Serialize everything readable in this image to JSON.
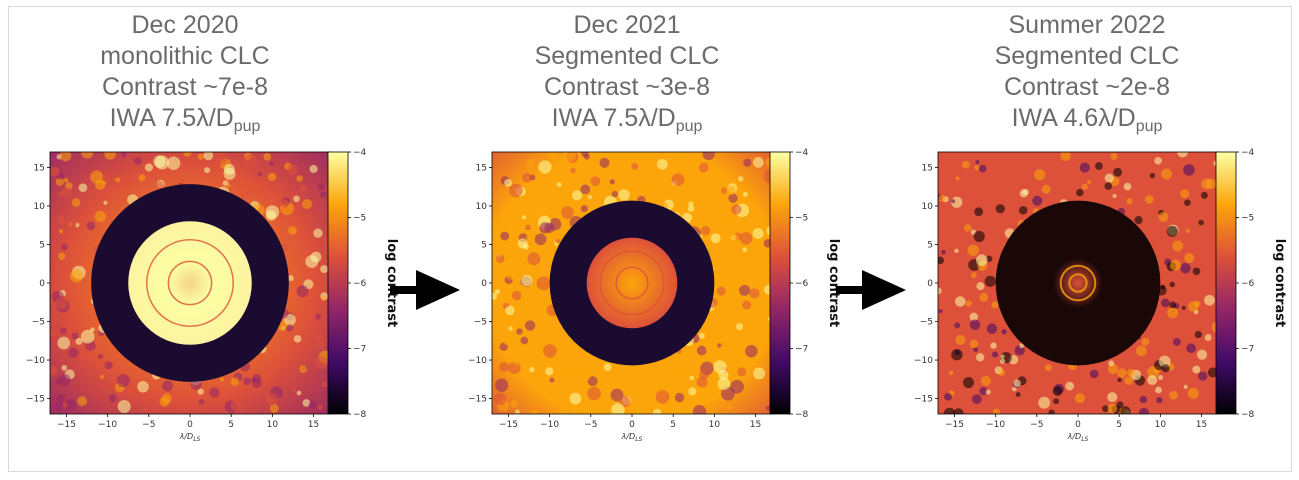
{
  "panels": [
    {
      "title_lines": [
        "Dec 2020",
        "monolithic CLC",
        "Contrast ~7e-8"
      ],
      "iwa_prefix": "IWA 7.5λ/D",
      "iwa_sub": "pup",
      "xlabel": "λ/D",
      "xlabel_sub": "LS",
      "colorbar_label": "log contrast",
      "ticks": [
        "−15",
        "−10",
        "−5",
        "0",
        "5",
        "10",
        "15"
      ],
      "cbar_ticks": [
        "−4",
        "−5",
        "−6",
        "−7",
        "−8"
      ]
    },
    {
      "title_lines": [
        "Dec 2021",
        "Segmented CLC",
        "Contrast ~3e-8"
      ],
      "iwa_prefix": "IWA 7.5λ/D",
      "iwa_sub": "pup",
      "xlabel": "λ/D",
      "xlabel_sub": "LS",
      "colorbar_label": "log contrast",
      "ticks": [
        "−15",
        "−10",
        "−5",
        "0",
        "5",
        "10",
        "15"
      ],
      "cbar_ticks": [
        "−4",
        "−5",
        "−6",
        "−7",
        "−8"
      ]
    },
    {
      "title_lines": [
        "Summer 2022",
        "Segmented CLC",
        "Contrast ~2e-8"
      ],
      "iwa_prefix": "IWA 4.6λ/D",
      "iwa_sub": "pup",
      "xlabel": "λ/D",
      "xlabel_sub": "LS",
      "colorbar_label": "log contrast",
      "ticks": [
        "−15",
        "−10",
        "−5",
        "0",
        "5",
        "10",
        "15"
      ],
      "cbar_ticks": [
        "−4",
        "−5",
        "−6",
        "−7",
        "−8"
      ]
    }
  ],
  "chart_data": [
    {
      "type": "heatmap",
      "title": "Dec 2020 monolithic CLC Contrast ~7e-8 IWA 7.5λ/Dpup",
      "xlabel": "λ/D_LS",
      "xlim": [
        -17,
        17
      ],
      "ylim": [
        -17,
        17
      ],
      "xticks": [
        -15,
        -10,
        -5,
        0,
        5,
        10,
        15
      ],
      "yticks": [
        -15,
        -10,
        -5,
        0,
        5,
        10,
        15
      ],
      "colorbar": {
        "label": "log contrast",
        "range": [
          -8,
          -4
        ],
        "ticks": [
          -4,
          -5,
          -6,
          -7,
          -8
        ]
      },
      "dark_hole_radii": [
        7.5,
        12
      ]
    },
    {
      "type": "heatmap",
      "title": "Dec 2021 Segmented CLC Contrast ~3e-8 IWA 7.5λ/Dpup",
      "xlabel": "λ/D_LS",
      "xlim": [
        -17,
        17
      ],
      "ylim": [
        -17,
        17
      ],
      "xticks": [
        -15,
        -10,
        -5,
        0,
        5,
        10,
        15
      ],
      "yticks": [
        -15,
        -10,
        -5,
        0,
        5,
        10,
        15
      ],
      "colorbar": {
        "label": "log contrast",
        "range": [
          -8,
          -4
        ],
        "ticks": [
          -4,
          -5,
          -6,
          -7,
          -8
        ]
      },
      "dark_hole_radii": [
        5.5,
        10
      ]
    },
    {
      "type": "heatmap",
      "title": "Summer 2022 Segmented CLC Contrast ~2e-8 IWA 4.6λ/Dpup",
      "xlabel": "λ/D_LS",
      "xlim": [
        -17,
        17
      ],
      "ylim": [
        -17,
        17
      ],
      "xticks": [
        -15,
        -10,
        -5,
        0,
        5,
        10,
        15
      ],
      "yticks": [
        -15,
        -10,
        -5,
        0,
        5,
        10,
        15
      ],
      "colorbar": {
        "label": "log contrast",
        "range": [
          -8,
          -4
        ],
        "ticks": [
          -4,
          -5,
          -6,
          -7,
          -8
        ]
      },
      "dark_hole_radii": [
        3,
        10
      ]
    }
  ],
  "colors": {
    "title_text": "#6b6b6b",
    "colormap": [
      "#000004",
      "#420a68",
      "#932667",
      "#dd513a",
      "#fca50a",
      "#fcffa4"
    ],
    "arrow": "#000000"
  }
}
